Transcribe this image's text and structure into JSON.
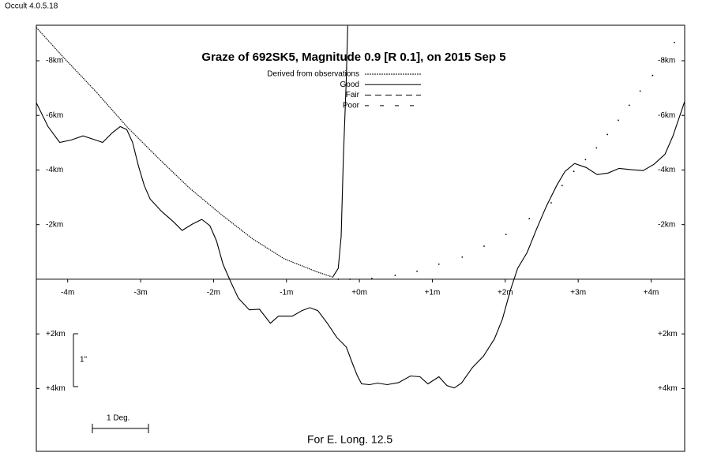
{
  "app_label": "Occult 4.0.5.18",
  "chart_data": {
    "type": "line",
    "title": "Graze of  692SK5,  Magnitude 0.9 [R 0.1],  on 2015 Sep  5",
    "footer": "For E. Long. 12.5",
    "scale_bars": {
      "vertical": "1\"",
      "horizontal": "1 Deg."
    },
    "legend": [
      {
        "label": "Derived from observations",
        "dash": "2,1"
      },
      {
        "label": "Good",
        "dash": "solid"
      },
      {
        "label": "Fair",
        "dash": "8,5"
      },
      {
        "label": "Poor",
        "dash": "5,14"
      }
    ],
    "xlim": [
      -4.43,
      4.46
    ],
    "ylim": [
      6.3,
      -9.3
    ],
    "xticks": [
      {
        "value": -4,
        "label": "-4m"
      },
      {
        "value": -3,
        "label": "-3m"
      },
      {
        "value": -2,
        "label": "-2m"
      },
      {
        "value": -1,
        "label": "-1m"
      },
      {
        "value": 0,
        "label": "+0m"
      },
      {
        "value": 1,
        "label": "+1m"
      },
      {
        "value": 2,
        "label": "+2m"
      },
      {
        "value": 3,
        "label": "+3m"
      },
      {
        "value": 4,
        "label": "+4m"
      }
    ],
    "yticks": [
      {
        "value": -8,
        "label": "-8km"
      },
      {
        "value": -6,
        "label": "-6km"
      },
      {
        "value": -4,
        "label": "-4km"
      },
      {
        "value": -2,
        "label": "-2km"
      },
      {
        "value": 2,
        "label": "+2km"
      },
      {
        "value": 4,
        "label": "+4km"
      }
    ],
    "series": [
      {
        "style": "solid",
        "color": "#000000",
        "x": [
          -4.43,
          -4.27,
          -4.11,
          -3.95,
          -3.79,
          -3.62,
          -3.52,
          -3.39,
          -3.28,
          -3.19,
          -3.11,
          -3.03,
          -2.95,
          -2.87,
          -2.71,
          -2.56,
          -2.43,
          -2.29,
          -2.16,
          -2.05,
          -1.96,
          -1.87,
          -1.76,
          -1.66,
          -1.51,
          -1.37,
          -1.22,
          -1.11,
          -0.92,
          -0.79,
          -0.68,
          -0.57,
          -0.44,
          -0.31,
          -0.18,
          -0.1,
          -0.03,
          0.03,
          0.14,
          0.25,
          0.38,
          0.54,
          0.7,
          0.83,
          0.94,
          1.09,
          1.2,
          1.3,
          1.4,
          1.55,
          1.7,
          1.85,
          1.96,
          2.07,
          2.17,
          2.3,
          2.43,
          2.56,
          2.71,
          2.82,
          2.95,
          3.11,
          3.26,
          3.41,
          3.56,
          3.73,
          3.89,
          4.04,
          4.19,
          4.3,
          4.46
        ],
        "values": [
          -6.46,
          -5.59,
          -5.01,
          -5.1,
          -5.25,
          -5.1,
          -5.01,
          -5.36,
          -5.59,
          -5.48,
          -5.01,
          -4.15,
          -3.43,
          -2.94,
          -2.48,
          -2.13,
          -1.79,
          -2.02,
          -2.19,
          -1.96,
          -1.41,
          -0.55,
          0.12,
          0.69,
          1.12,
          1.1,
          1.61,
          1.35,
          1.35,
          1.15,
          1.04,
          1.15,
          1.61,
          2.13,
          2.48,
          3.05,
          3.52,
          3.83,
          3.86,
          3.8,
          3.86,
          3.78,
          3.54,
          3.57,
          3.83,
          3.57,
          3.89,
          3.98,
          3.8,
          3.23,
          2.82,
          2.19,
          1.47,
          0.4,
          -0.4,
          -0.98,
          -1.84,
          -2.65,
          -3.46,
          -3.95,
          -4.24,
          -4.09,
          -3.83,
          -3.89,
          -4.06,
          -4.01,
          -3.98,
          -4.21,
          -4.58,
          -5.25,
          -6.51
        ]
      },
      {
        "style": "dotted",
        "color": "#000000",
        "x": [
          -4.43,
          -4.06,
          -3.62,
          -3.19,
          -2.76,
          -2.33,
          -1.89,
          -1.46,
          -1.03,
          -0.6,
          -0.38
        ],
        "values": [
          -9.22,
          -8.13,
          -6.89,
          -5.59,
          -4.44,
          -3.34,
          -2.36,
          -1.47,
          -0.75,
          -0.29,
          -0.09
        ]
      },
      {
        "style": "dots",
        "color": "#000000",
        "x": [
          -0.29,
          -0.13,
          0.17,
          0.49,
          0.79,
          1.09,
          1.41,
          1.71,
          2.01,
          2.33,
          2.63,
          2.78,
          2.94,
          3.1,
          3.25,
          3.4,
          3.55,
          3.7,
          3.85,
          4.02,
          4.17,
          4.32
        ],
        "values": [
          0,
          0,
          -0.03,
          -0.14,
          -0.29,
          -0.55,
          -0.81,
          -1.21,
          -1.64,
          -2.22,
          -2.8,
          -3.43,
          -3.95,
          -4.38,
          -4.81,
          -5.3,
          -5.82,
          -6.37,
          -6.89,
          -7.46,
          -8.04,
          -8.67
        ]
      },
      {
        "style": "solid",
        "color": "#000000",
        "x": [
          -0.37,
          -0.29,
          -0.25,
          -0.22,
          -0.18,
          -0.16
        ],
        "values": [
          -0.06,
          -0.4,
          -1.56,
          -4.44,
          -7.32,
          -9.28
        ]
      }
    ]
  }
}
